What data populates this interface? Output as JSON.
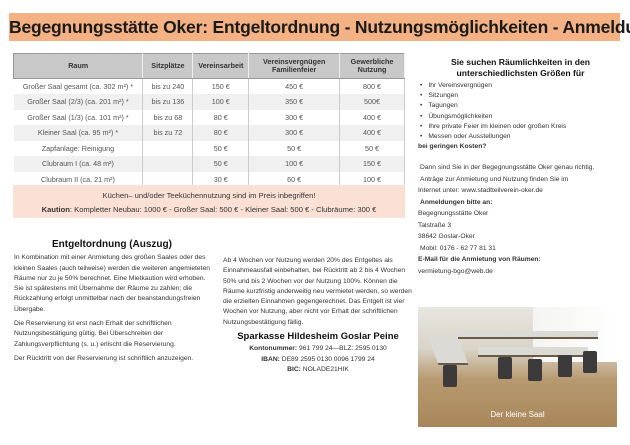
{
  "title": "Begegnungsstätte Oker: Entgeltordnung - Nutzungsmöglichkeiten - Anmeldung",
  "table": {
    "headers": [
      "Raum",
      "Sitzplätze",
      "Vereinsarbeit",
      "Vereinsvergnügen Familienfeier",
      "Gewerbliche Nutzung"
    ],
    "rows": [
      [
        "Großer Saal gesamt (ca. 302 m²) *",
        "bis zu 240",
        "150 €",
        "450 €",
        "800 €"
      ],
      [
        "Großer Saal (2/3) (ca. 201 m²) *",
        "bis zu 136",
        "100 €",
        "350 €",
        "500€"
      ],
      [
        "Großer Saal (1/3) (ca. 101 m²) *",
        "bis zu 68",
        "80 €",
        "300 €",
        "400 €"
      ],
      [
        "Kleiner Saal (ca. 95 m²) *",
        "bis zu 72",
        "80 €",
        "300 €",
        "400 €"
      ],
      [
        "Zapfanlage: Reinigung",
        "",
        "50 €",
        "50 €",
        "50 €"
      ],
      [
        "Clubraum I (ca. 48 m²)",
        "",
        "50 €",
        "100 €",
        "150 €"
      ],
      [
        "Clubraum II (ca. 21 m²)",
        "",
        "30 €",
        "60 €",
        "100 €"
      ]
    ]
  },
  "notice": {
    "line1": "Küchen– und/oder Teeküchennutzung sind im Preis inbegriffen!",
    "kaution_label": "Kaution",
    "kaution_text": ": Kompletter Neubau: 1000 € - Großer Saal: 500 € - Kleiner Saal: 500 € - Clubräume: 300 €"
  },
  "entgelt": {
    "heading": "Entgeltordnung (Auszug)",
    "paragraphs": [
      "In Kombination mit einer Anmietung des großen Saales oder des kleinen Saales (auch teilweise) werden die weiteren angemieteten Räume nur zu je 50% berechnet. Eine Mietkaution wird erhoben. Sie ist spätestens mit Übernahme der Räume zu zahlen; die Rückzahlung erfolgt unmittelbar nach der beanstandungsfreien Übergabe.",
      "Die Reservierung ist erst nach Erhalt der schriftlichen Nutzungsbestätigung gültig. Bei Überschreiten der Zahlungsverpflichtung (s. u.) erlischt die Reservierung.",
      "Der Rücktritt von der Reservierung ist schriftlich anzuzeigen.",
      "Ab 4 Wochen vor Nutzung werden 20% des Entgeltes als Einnahmeausfall einbehalten, bei Rücktritt ab 2 bis 4 Wochen 50% und bis 2 Wochen vor der Nutzung 100%. Können die Räume kurzfristig anderweitig neu vermietet werden, so werden die erzielten Einnahmen gegengerechnet. Das Entgelt ist vier Wochen vor Nutzung, aber nicht vor Erhalt der schriftlichen Nutzungsbestätigung fällig."
    ]
  },
  "bank": {
    "name": "Sparkasse Hildesheim Goslar Peine",
    "konto_label": "Kontonummer:",
    "konto": " 961 799 24—BLZ: 2595 0130",
    "iban_label": "IBAN:",
    "iban": " DE89 2595 0130 0096 1799 24",
    "bic_label": "BIC:",
    "bic": " NOLADE21HIK"
  },
  "right": {
    "heading": "Sie suchen Räumlichkeiten in den unterschiedlichsten Größen für",
    "items": [
      "Ihr Vereinsvergnügen",
      "Sitzungen",
      "Tagungen",
      "Übungsmöglichkeiten",
      "Ihre private Feier im kleinen oder großen Kreis",
      "Messen oder Ausstellungen"
    ],
    "question": "bei geringen Kosten?",
    "intro1": "Dann sind Sie in der Begegnungsstätte Oker genau richtig.",
    "intro2": "Anträge zur Anmietung und Nutzung finden Sie im",
    "intro3": "Internet unter: www.stadtteilverein-oker.de",
    "anmeldung_label": "Anmeldungen bitte an:",
    "address": [
      "Begegnungsstätte Oker",
      "Talstraße 3",
      "38642 Goslar-Oker",
      "Mobil: 0176 - 62 77 81 31"
    ],
    "email_label": "E-Mail für die Anmietung von Räumen:",
    "email": "vermietung-bgo@web.de"
  },
  "photo": {
    "caption": "Der kleine Saal"
  }
}
